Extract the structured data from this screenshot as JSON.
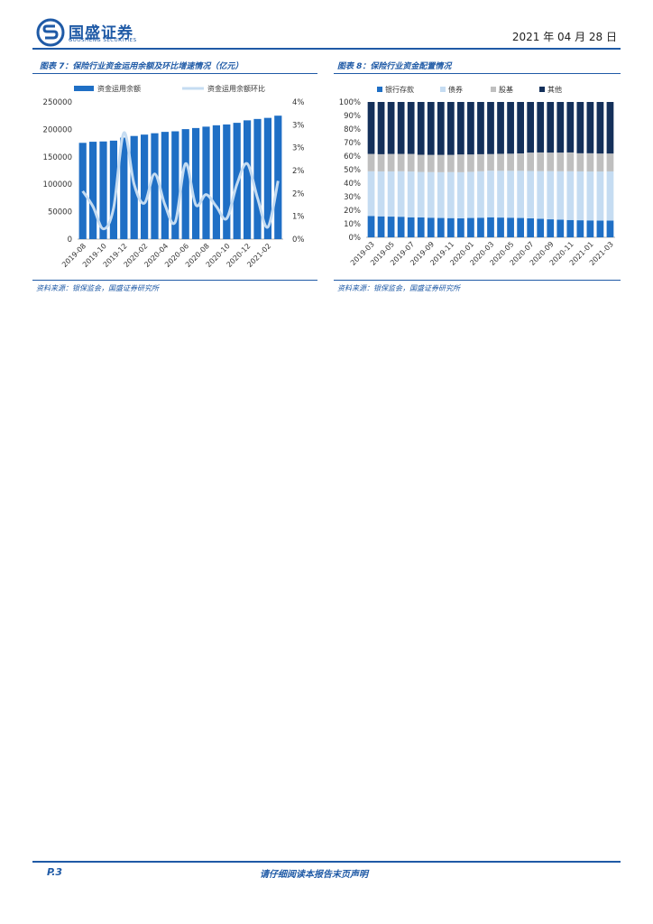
{
  "header": {
    "brand": "国盛证券",
    "brand_sub": "GUOSHENG SECURITIES",
    "date": "2021 年 04 月 28 日",
    "colors": {
      "brand": "#1f5aa6"
    }
  },
  "figure7": {
    "title": "图表 7：保险行业资金运用余额及环比增速情况（亿元）",
    "source": "资料来源：银保监会，国盛证券研究所"
  },
  "figure8": {
    "title": "图表 8：保险行业资金配置情况",
    "source": "资料来源：银保监会，国盛证券研究所"
  },
  "footer": {
    "page": "P.3",
    "disclaimer": "请仔细阅读本报告末页声明"
  },
  "chart_data": [
    {
      "type": "bar+line",
      "title": "图表 7：保险行业资金运用余额及环比增速情况（亿元）",
      "x": [
        "2019-08",
        "2019-09",
        "2019-10",
        "2019-11",
        "2019-12",
        "2020-01",
        "2020-02",
        "2020-03",
        "2020-04",
        "2020-05",
        "2020-06",
        "2020-07",
        "2020-08",
        "2020-09",
        "2020-10",
        "2020-11",
        "2020-12",
        "2021-01",
        "2021-02",
        "2021-03"
      ],
      "x_tick_labels": [
        "2019-08",
        "2019-10",
        "2019-12",
        "2020-02",
        "2020-04",
        "2020-06",
        "2020-08",
        "2020-10",
        "2020-12",
        "2021-02"
      ],
      "series": [
        {
          "name": "资金运用余额",
          "kind": "bar",
          "axis": "left",
          "color": "#1f6fc5",
          "values": [
            175500,
            177500,
            178000,
            179500,
            185000,
            188000,
            190500,
            193000,
            195500,
            196500,
            200500,
            202500,
            205000,
            207500,
            209000,
            212000,
            216500,
            219000,
            221000,
            225000
          ]
        },
        {
          "name": "资金运用余额环比",
          "kind": "line",
          "axis": "right",
          "color": "#c5dcf2",
          "values": [
            0.014,
            0.0095,
            0.003,
            0.009,
            0.031,
            0.016,
            0.0105,
            0.019,
            0.01,
            0.005,
            0.022,
            0.01,
            0.013,
            0.0095,
            0.006,
            0.016,
            0.022,
            0.012,
            0.0035,
            0.017
          ]
        }
      ],
      "y_left": {
        "min": 0,
        "max": 250000,
        "ticks": [
          0,
          50000,
          100000,
          150000,
          200000,
          250000
        ]
      },
      "y_right": {
        "min": 0,
        "max": 0.04,
        "ticks": [
          "0%",
          "1%",
          "2%",
          "2%",
          "3%",
          "3%",
          "4%"
        ]
      },
      "legend": "top"
    },
    {
      "type": "stacked-bar",
      "title": "图表 8：保险行业资金配置情况",
      "x": [
        "2019-03",
        "2019-04",
        "2019-05",
        "2019-06",
        "2019-07",
        "2019-08",
        "2019-09",
        "2019-10",
        "2019-11",
        "2019-12",
        "2020-01",
        "2020-02",
        "2020-03",
        "2020-04",
        "2020-05",
        "2020-06",
        "2020-07",
        "2020-08",
        "2020-09",
        "2020-10",
        "2020-11",
        "2020-12",
        "2021-01",
        "2021-02",
        "2021-03"
      ],
      "x_tick_labels": [
        "2019-03",
        "2019-05",
        "2019-07",
        "2019-09",
        "2019-11",
        "2020-01",
        "2020-03",
        "2020-05",
        "2020-07",
        "2020-09",
        "2020-11",
        "2021-01",
        "2021-03"
      ],
      "series": [
        {
          "name": "银行存款",
          "color": "#1f6fc5",
          "values": [
            0.158,
            0.155,
            0.153,
            0.152,
            0.148,
            0.147,
            0.145,
            0.143,
            0.142,
            0.141,
            0.143,
            0.145,
            0.148,
            0.146,
            0.145,
            0.143,
            0.14,
            0.137,
            0.133,
            0.13,
            0.128,
            0.126,
            0.125,
            0.124,
            0.124
          ]
        },
        {
          "name": "债券",
          "color": "#c5dcf2",
          "values": [
            0.33,
            0.332,
            0.334,
            0.336,
            0.338,
            0.336,
            0.337,
            0.338,
            0.34,
            0.34,
            0.341,
            0.343,
            0.344,
            0.345,
            0.346,
            0.348,
            0.35,
            0.352,
            0.356,
            0.358,
            0.36,
            0.361,
            0.361,
            0.362,
            0.363
          ]
        },
        {
          "name": "股基",
          "color": "#bfbfbf",
          "values": [
            0.128,
            0.127,
            0.129,
            0.128,
            0.13,
            0.127,
            0.127,
            0.128,
            0.127,
            0.131,
            0.128,
            0.126,
            0.123,
            0.126,
            0.127,
            0.129,
            0.136,
            0.138,
            0.137,
            0.138,
            0.139,
            0.134,
            0.135,
            0.133,
            0.132
          ]
        },
        {
          "name": "其他",
          "color": "#14305a",
          "values": [
            0.384,
            0.386,
            0.384,
            0.384,
            0.384,
            0.39,
            0.391,
            0.391,
            0.391,
            0.388,
            0.388,
            0.386,
            0.385,
            0.383,
            0.382,
            0.38,
            0.374,
            0.373,
            0.374,
            0.374,
            0.373,
            0.379,
            0.379,
            0.381,
            0.381
          ]
        }
      ],
      "y_axis": {
        "min": 0,
        "max": 1,
        "ticks": [
          "0%",
          "10%",
          "20%",
          "30%",
          "40%",
          "50%",
          "60%",
          "70%",
          "80%",
          "90%",
          "100%"
        ]
      },
      "legend": "top"
    }
  ]
}
